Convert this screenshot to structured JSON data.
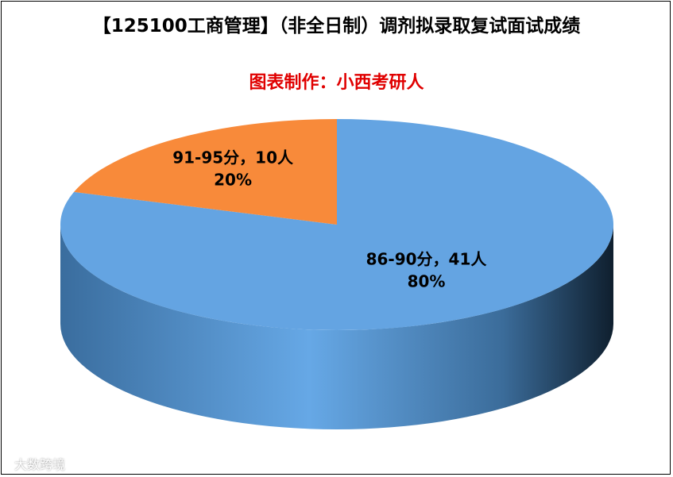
{
  "chart_data": {
    "type": "pie3d",
    "title": "【125100工商管理】（非全日制）调剂拟录取复试面试成绩",
    "subtitle": "图表制作：小西考研人",
    "categories": [
      "86-90分，41人",
      "91-95分，10人"
    ],
    "values": [
      80,
      20
    ],
    "value_labels": [
      "80%",
      "20%"
    ],
    "colors": [
      "#64a4e2",
      "#f88a3a"
    ],
    "watermark": "大数跨境"
  }
}
